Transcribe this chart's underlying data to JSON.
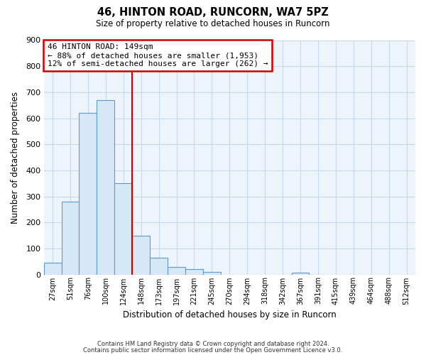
{
  "title": "46, HINTON ROAD, RUNCORN, WA7 5PZ",
  "subtitle": "Size of property relative to detached houses in Runcorn",
  "xlabel": "Distribution of detached houses by size in Runcorn",
  "ylabel": "Number of detached properties",
  "bin_labels": [
    "27sqm",
    "51sqm",
    "76sqm",
    "100sqm",
    "124sqm",
    "148sqm",
    "173sqm",
    "197sqm",
    "221sqm",
    "245sqm",
    "270sqm",
    "294sqm",
    "318sqm",
    "342sqm",
    "367sqm",
    "391sqm",
    "415sqm",
    "439sqm",
    "464sqm",
    "488sqm",
    "512sqm"
  ],
  "bar_heights": [
    45,
    280,
    620,
    670,
    350,
    148,
    65,
    30,
    20,
    10,
    0,
    0,
    0,
    0,
    8,
    0,
    0,
    0,
    0,
    0,
    0
  ],
  "bar_color": "#d6e8f7",
  "bar_edge_color": "#5b9bd5",
  "property_line_color": "#cc0000",
  "annotation_title": "46 HINTON ROAD: 149sqm",
  "annotation_line1": "← 88% of detached houses are smaller (1,953)",
  "annotation_line2": "12% of semi-detached houses are larger (262) →",
  "annotation_box_color": "#cc0000",
  "ylim": [
    0,
    900
  ],
  "yticks": [
    0,
    100,
    200,
    300,
    400,
    500,
    600,
    700,
    800,
    900
  ],
  "plot_bg_color": "#eef4fb",
  "grid_color": "#c5d8ec",
  "footnote1": "Contains HM Land Registry data © Crown copyright and database right 2024.",
  "footnote2": "Contains public sector information licensed under the Open Government Licence v3.0."
}
